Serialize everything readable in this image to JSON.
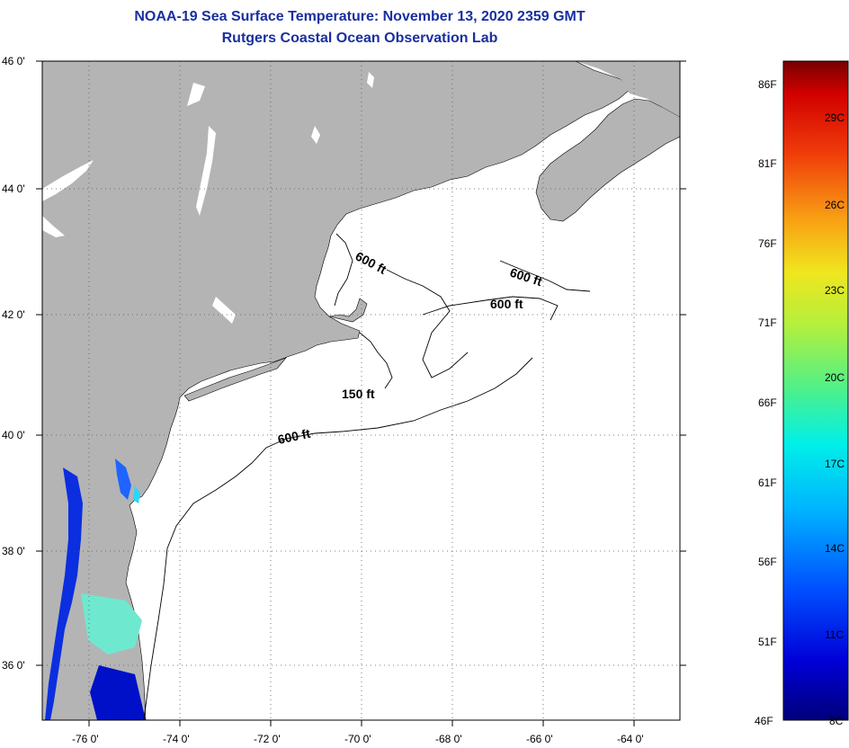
{
  "header": {
    "title": "NOAA-19 Sea Surface Temperature:  November 13, 2020 2359 GMT",
    "subtitle": "Rutgers Coastal Ocean Observation Lab"
  },
  "map": {
    "lat_labels": [
      "46 0'",
      "44 0'",
      "42 0'",
      "40 0'",
      "38 0'",
      "36 0'"
    ],
    "lon_labels": [
      "-76 0'",
      "-74 0'",
      "-72 0'",
      "-70 0'",
      "-68 0'",
      "-66 0'",
      "-64 0'"
    ],
    "lat_range": [
      35,
      46
    ],
    "lon_range": [
      -77,
      -63
    ],
    "contours": [
      {
        "label": "600 ft",
        "name": "gulf-of-maine-west"
      },
      {
        "label": "600 ft",
        "name": "gulf-of-maine-east"
      },
      {
        "label": "600 ft",
        "name": "georges-bank"
      },
      {
        "label": "150 ft",
        "name": "nantucket-shoals"
      },
      {
        "label": "600 ft",
        "name": "shelf-break"
      }
    ],
    "colors": {
      "land": "#b4b4b4",
      "water": "#ffffff",
      "grid": "#000000"
    }
  },
  "colorbar": {
    "fahrenheit_labels": [
      "86F",
      "81F",
      "76F",
      "71F",
      "66F",
      "61F",
      "56F",
      "51F",
      "46F"
    ],
    "celsius_labels": [
      "29C",
      "26C",
      "23C",
      "20C",
      "17C",
      "14C",
      "11C",
      "8C"
    ],
    "range_c": [
      8,
      30
    ]
  }
}
